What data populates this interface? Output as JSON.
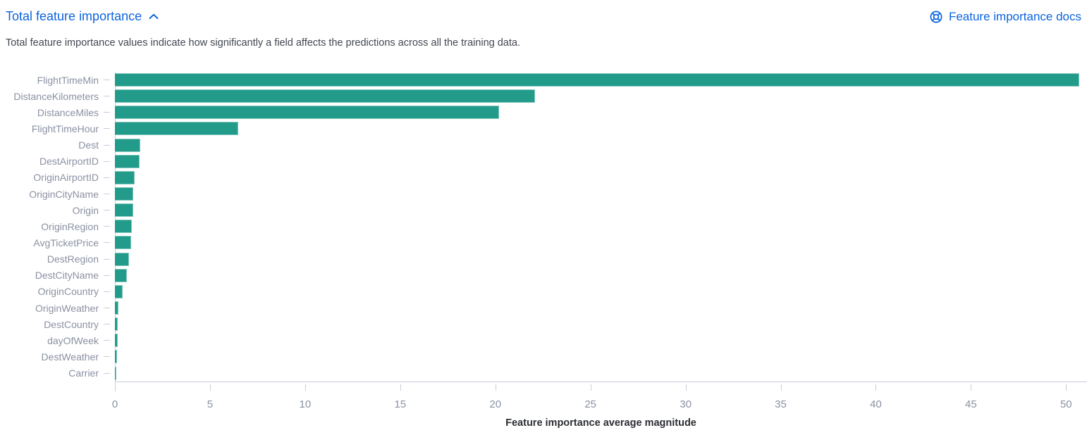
{
  "header": {
    "title": "Total feature importance",
    "docs_link": "Feature importance docs"
  },
  "subtitle": "Total feature importance values indicate how significantly a field affects the predictions across all the training data.",
  "icons": {
    "chevron": "chevron-up-icon",
    "docs": "help-lifering-icon"
  },
  "colors": {
    "accent_blue": "#0b64dd",
    "bar_teal": "#229b8a",
    "axis_line": "#c9cdd9",
    "label_text": "#8b91a3",
    "subtitle_text": "#414751",
    "axis_title_text": "#2b2e33"
  },
  "chart_data": {
    "type": "bar",
    "orientation": "horizontal",
    "title": "Total feature importance",
    "categories": [
      "FlightTimeMin",
      "DistanceKilometers",
      "DistanceMiles",
      "FlightTimeHour",
      "Dest",
      "DestAirportID",
      "OriginAirportID",
      "OriginCityName",
      "Origin",
      "OriginRegion",
      "AvgTicketPrice",
      "DestRegion",
      "DestCityName",
      "OriginCountry",
      "OriginWeather",
      "DestCountry",
      "dayOfWeek",
      "DestWeather",
      "Carrier"
    ],
    "values": [
      50.7,
      22.1,
      20.2,
      6.5,
      1.35,
      1.3,
      1.05,
      0.97,
      0.95,
      0.9,
      0.87,
      0.73,
      0.63,
      0.4,
      0.18,
      0.15,
      0.14,
      0.11,
      0.07
    ],
    "xlabel": "Feature importance average magnitude",
    "ylabel": "",
    "x_ticks": [
      0,
      5,
      10,
      15,
      20,
      25,
      30,
      35,
      40,
      45,
      50
    ],
    "xlim": [
      0,
      51.1
    ],
    "grid": false,
    "legend": false
  }
}
